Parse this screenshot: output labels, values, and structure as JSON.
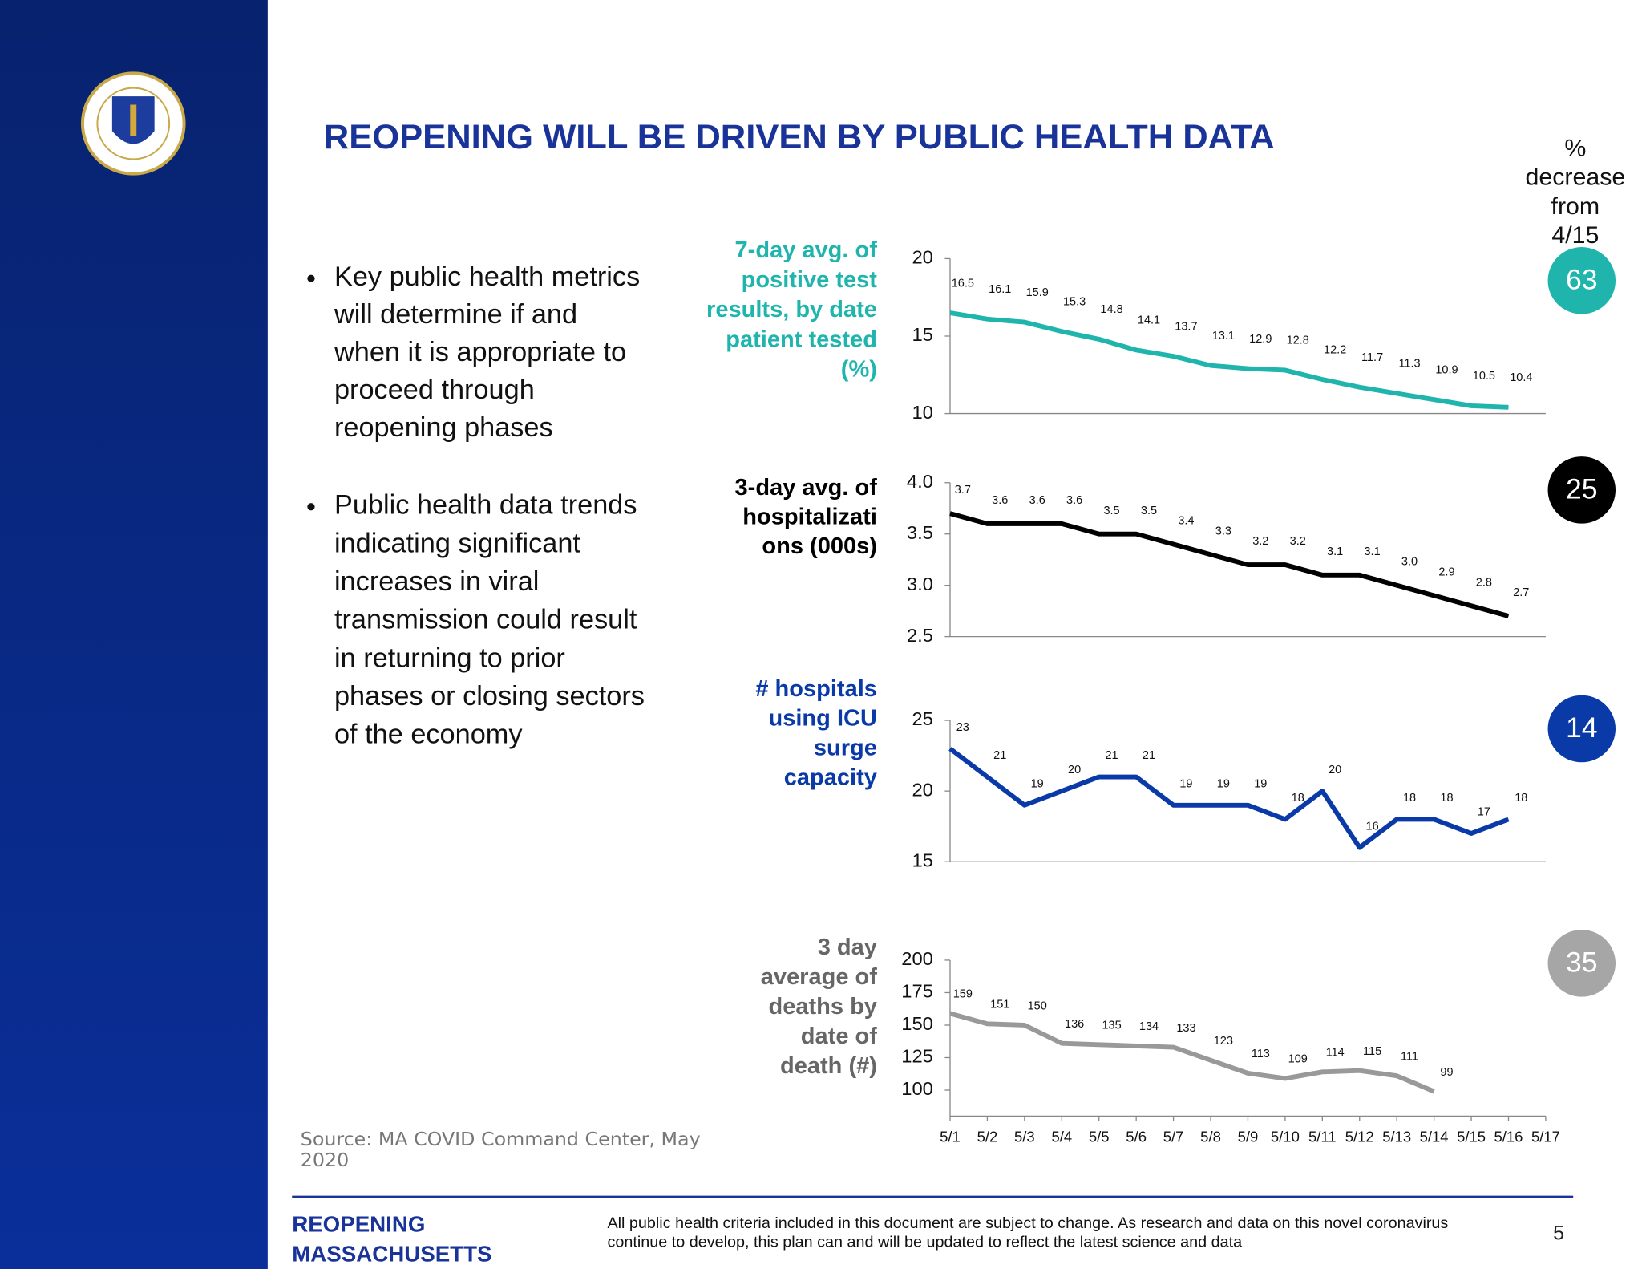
{
  "header": {
    "title": "REOPENING WILL BE DRIVEN BY PUBLIC HEALTH DATA"
  },
  "bullets": [
    [
      "Key public health metrics",
      "will determine if and",
      "when it is appropriate to",
      "proceed through",
      "reopening phases"
    ],
    [
      "Public health data trends",
      "indicating significant",
      "increases in viral",
      "transmission could result",
      "in returning to prior",
      "phases or closing sectors",
      "of the economy"
    ]
  ],
  "decrease": {
    "heading": [
      "%",
      "decrease",
      "from",
      "4/15"
    ],
    "values": [
      63,
      25,
      14,
      35
    ],
    "colors": [
      "#1fb5ad",
      "#000000",
      "#0a3aa8",
      "#a6a6a6"
    ]
  },
  "source": [
    "Source: MA COVID Command Center, May",
    "2020"
  ],
  "footer": {
    "brand": [
      "REOPENING",
      "MASSACHUSETTS"
    ],
    "note": [
      "All public health criteria included in this document are subject to change. As research and data on this novel coronavirus",
      "continue to develop, this plan can and will be updated to reflect the latest science and data"
    ],
    "page": 5
  },
  "chart_data": [
    {
      "type": "line",
      "title": [
        "7-day avg. of",
        "positive test",
        "results, by date",
        "patient tested",
        "(%)"
      ],
      "color": "#1fb5ad",
      "values": [
        16.5,
        16.1,
        15.9,
        15.3,
        14.8,
        14.1,
        13.7,
        13.1,
        12.9,
        12.8,
        12.2,
        11.7,
        11.3,
        10.9,
        10.5,
        10.4,
        null
      ],
      "ylim": [
        10,
        20
      ],
      "yticks": [
        10,
        15,
        20
      ]
    },
    {
      "type": "line",
      "title": [
        "3-day avg. of",
        "hospitalizati",
        "ons (000s)"
      ],
      "color": "#000000",
      "values": [
        3.7,
        3.6,
        3.6,
        3.6,
        3.5,
        3.5,
        3.4,
        3.3,
        3.2,
        3.2,
        3.1,
        3.1,
        3.0,
        2.9,
        2.8,
        2.7,
        null
      ],
      "value_labels": [
        "3.7",
        "3.6",
        "3.6",
        "3.6",
        "3.5",
        "3.5",
        "3.4",
        "3.3",
        "3.2",
        "3.2",
        "3.1",
        "3.1",
        "3.0",
        "2.9",
        "2.8",
        "2.7",
        null
      ],
      "ylim": [
        2.5,
        4
      ],
      "yticks": [
        2.5,
        {
          "value": 3,
          "label": "3.0"
        },
        3.5,
        {
          "value": 4,
          "label": "4.0"
        }
      ]
    },
    {
      "type": "line",
      "title": [
        "# hospitals",
        "using ICU",
        "surge",
        "capacity"
      ],
      "color": "#0a3aa8",
      "values": [
        23,
        21,
        19,
        20,
        21,
        21,
        19,
        19,
        19,
        18,
        20,
        16,
        18,
        18,
        17,
        18,
        null
      ],
      "ylim": [
        15,
        25
      ],
      "yticks": [
        15,
        20,
        25
      ]
    },
    {
      "type": "line",
      "title": [
        "3 day",
        "average of",
        "deaths by",
        "date of",
        "death (#)"
      ],
      "color": "#999999",
      "categories": [
        "5/1",
        "5/2",
        "5/3",
        "5/4",
        "5/5",
        "5/6",
        "5/7",
        "5/8",
        "5/9",
        "5/10",
        "5/11",
        "5/12",
        "5/13",
        "5/14",
        "5/15",
        "5/16",
        "5/17"
      ],
      "values": [
        159,
        151,
        150,
        136,
        135,
        134,
        133,
        123,
        113,
        109,
        114,
        115,
        111,
        99,
        null,
        null,
        null
      ],
      "ylim": [
        80,
        200
      ],
      "yticks": [
        100,
        125,
        150,
        175,
        200
      ]
    }
  ]
}
